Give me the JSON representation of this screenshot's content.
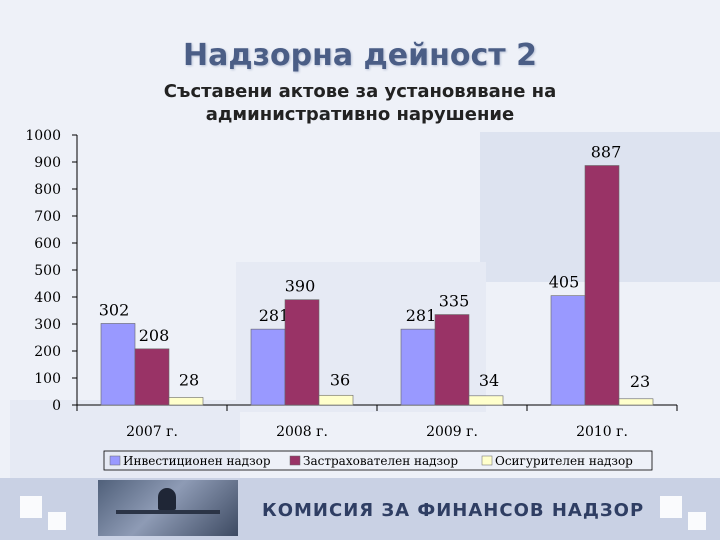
{
  "slide": {
    "title": "Надзорна дейност 2",
    "subtitle_line1": "Съставени актове за установяване на",
    "subtitle_line2": "административно нарушение"
  },
  "footer": {
    "organization": "КОМИСИЯ ЗА ФИНАНСОВ НАДЗОР"
  },
  "colors": {
    "investment": "#9999ff",
    "insurance": "#993366",
    "social": "#ffffcc"
  },
  "chart_data": {
    "type": "bar",
    "title": "",
    "xlabel": "",
    "ylabel": "",
    "ylim": [
      0,
      1000
    ],
    "yticks": [
      0,
      100,
      200,
      300,
      400,
      500,
      600,
      700,
      800,
      900,
      1000
    ],
    "categories": [
      "2007 г.",
      "2008 г.",
      "2009 г.",
      "2010 г."
    ],
    "series": [
      {
        "name": "Инвестиционен надзор",
        "values": [
          302,
          281,
          281,
          405
        ]
      },
      {
        "name": "Застрахователен надзор",
        "values": [
          208,
          390,
          335,
          887
        ]
      },
      {
        "name": "Осигурителен надзор",
        "values": [
          28,
          36,
          34,
          23
        ]
      }
    ],
    "grid": false,
    "legend": "bottom"
  }
}
